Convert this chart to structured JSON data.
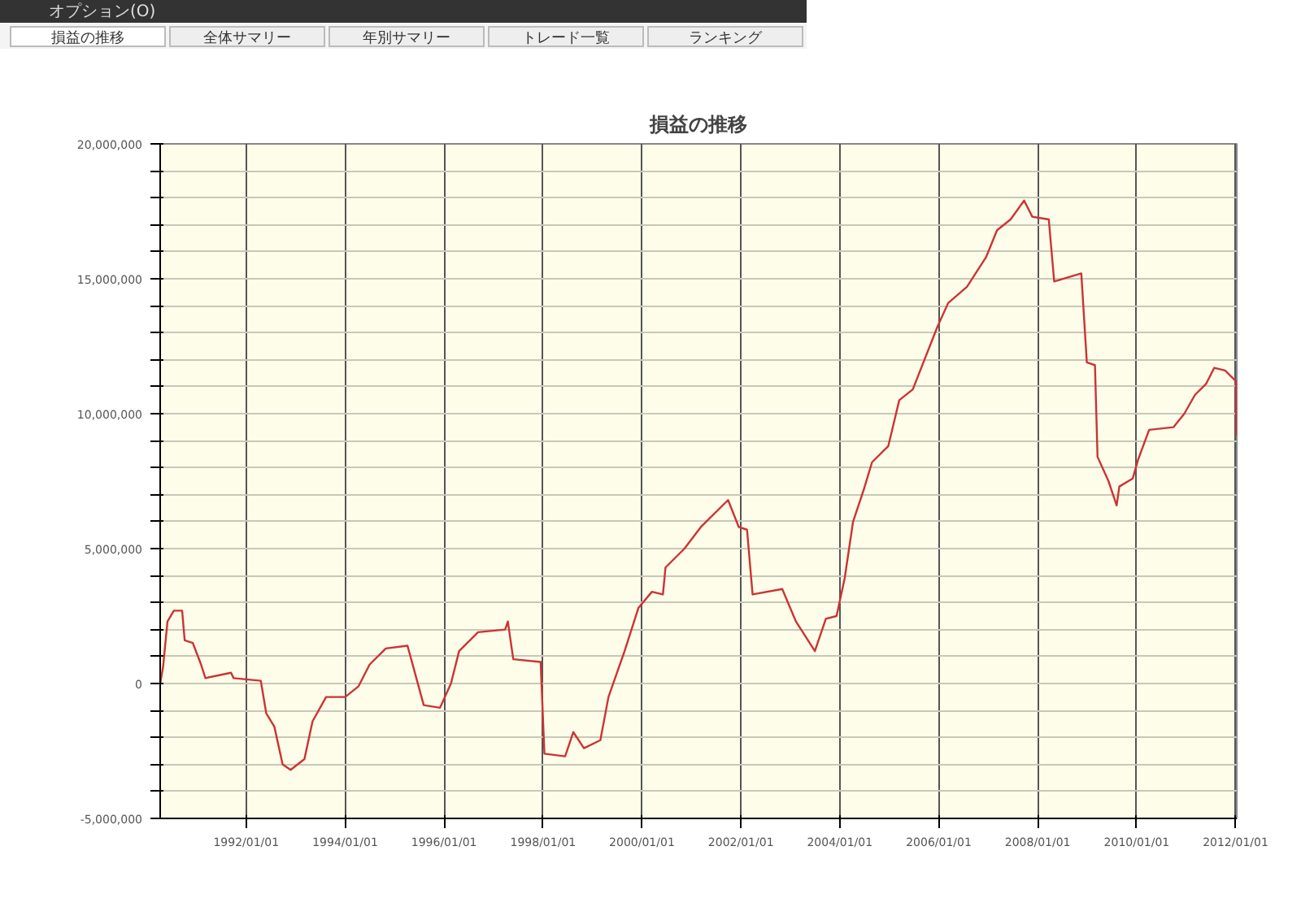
{
  "chart_data": {
    "type": "line",
    "title": "損益の推移",
    "annotations": [
      "オプション(O)",
      "損益の推移",
      "全体サマリー",
      "年別サマリー",
      "トレード一覧",
      "ランキング"
    ],
    "x": [
      "1990-04-06",
      "1990-04-27",
      "1990-05-30",
      "1990-07-16",
      "1990-09-15",
      "1990-10-04",
      "1990-12-03",
      "1991-02-02",
      "1991-03-06",
      "1991-09-11",
      "1991-09-30",
      "1992-04-18",
      "1992-05-28",
      "1992-07-27",
      "1992-09-26",
      "1992-11-24",
      "1993-03-06",
      "1993-05-05",
      "1993-08-13",
      "1994-01-01",
      "1994-04-10",
      "1994-06-30",
      "1994-10-28",
      "1995-04-06",
      "1995-08-04",
      "1995-12-02",
      "1996-02-21",
      "1996-04-21",
      "1996-09-08",
      "1997-03-27",
      "1997-04-16",
      "1997-05-26",
      "1997-12-14",
      "1998-01-11",
      "1998-06-13",
      "1998-08-12",
      "1998-10-30",
      "1999-02-28",
      "1999-04-29",
      "1999-08-26",
      "1999-12-06",
      "2000-03-15",
      "2000-06-04",
      "2000-06-23",
      "2000-11-10",
      "2001-03-11",
      "2001-09-28",
      "2001-12-16",
      "2002-02-15",
      "2002-03-28",
      "2002-11-02",
      "2003-02-11",
      "2003-07-01",
      "2003-09-20",
      "2003-12-08",
      "2004-02-06",
      "2004-04-08",
      "2004-06-27",
      "2004-08-26",
      "2004-12-24",
      "2005-03-15",
      "2005-06-23",
      "2005-12-20",
      "2006-03-11",
      "2006-07-28",
      "2006-12-16",
      "2007-03-07",
      "2007-06-15",
      "2007-09-23",
      "2007-11-22",
      "2008-03-23",
      "2008-05-02",
      "2008-11-18",
      "2008-12-29",
      "2009-02-27",
      "2009-03-18",
      "2009-06-07",
      "2009-08-06",
      "2009-08-26",
      "2009-12-03",
      "2010-01-12",
      "2010-04-03",
      "2010-09-30",
      "2010-12-19",
      "2011-03-08",
      "2011-05-28",
      "2011-07-28",
      "2011-10-16",
      "2012-01-04",
      "2012-01-06"
    ],
    "series": [
      {
        "color": "#cc3333",
        "values": [
          0,
          600000,
          2300000,
          2700000,
          2700000,
          1600000,
          1500000,
          700000,
          200000,
          400000,
          200000,
          100000,
          -1100000,
          -1600000,
          -3000000,
          -3200000,
          -2800000,
          -1400000,
          -500000,
          -500000,
          -100000,
          700000,
          1300000,
          1400000,
          -800000,
          -900000,
          0,
          1200000,
          1900000,
          2000000,
          2300000,
          900000,
          800000,
          -2600000,
          -2700000,
          -1800000,
          -2400000,
          -2100000,
          -500000,
          1200000,
          2800000,
          3400000,
          3300000,
          4300000,
          5000000,
          5800000,
          6800000,
          5800000,
          5700000,
          3300000,
          3500000,
          2300000,
          1200000,
          2400000,
          2500000,
          3900000,
          6000000,
          7200000,
          8200000,
          8800000,
          10500000,
          10900000,
          13200000,
          14100000,
          14700000,
          15800000,
          16800000,
          17200000,
          17900000,
          17300000,
          17200000,
          14900000,
          15200000,
          11900000,
          11800000,
          8400000,
          7500000,
          6600000,
          7300000,
          7600000,
          8300000,
          9400000,
          9500000,
          10000000,
          10700000,
          11100000,
          11700000,
          11600000,
          11200000,
          9200000
        ]
      }
    ],
    "xlim": [
      "1990-04-06",
      "2012-01-10"
    ],
    "xticks": [
      {
        "value": "1992-01-01",
        "label": "1992/01/01"
      },
      {
        "value": "1994-01-01",
        "label": "1994/01/01"
      },
      {
        "value": "1996-01-01",
        "label": "1996/01/01"
      },
      {
        "value": "1998-01-01",
        "label": "1998/01/01"
      },
      {
        "value": "2000-01-01",
        "label": "2000/01/01"
      },
      {
        "value": "2002-01-01",
        "label": "2002/01/01"
      },
      {
        "value": "2004-01-01",
        "label": "2004/01/01"
      },
      {
        "value": "2006-01-01",
        "label": "2006/01/01"
      },
      {
        "value": "2008-01-01",
        "label": "2008/01/01"
      },
      {
        "value": "2010-01-01",
        "label": "2010/01/01"
      },
      {
        "value": "2012-01-01",
        "label": "2012/01/01"
      }
    ],
    "ylim": [
      -5000000,
      20000000
    ],
    "yticks": [
      {
        "value": -5000000,
        "label": "-5,000,000"
      },
      {
        "value": -4000000,
        "label": null
      },
      {
        "value": -3000000,
        "label": null
      },
      {
        "value": -2000000,
        "label": null
      },
      {
        "value": -1000000,
        "label": null
      },
      0,
      {
        "value": 1000000,
        "label": null
      },
      {
        "value": 2000000,
        "label": null
      },
      {
        "value": 3000000,
        "label": null
      },
      {
        "value": 4000000,
        "label": null
      },
      {
        "value": 5000000,
        "label": "5,000,000"
      },
      {
        "value": 6000000,
        "label": null
      },
      {
        "value": 7000000,
        "label": null
      },
      {
        "value": 8000000,
        "label": null
      },
      {
        "value": 9000000,
        "label": null
      },
      {
        "value": 10000000,
        "label": "10,000,000"
      },
      {
        "value": 11000000,
        "label": null
      },
      {
        "value": 12000000,
        "label": null
      },
      {
        "value": 13000000,
        "label": null
      },
      {
        "value": 14000000,
        "label": null
      },
      {
        "value": 15000000,
        "label": "15,000,000"
      },
      {
        "value": 16000000,
        "label": null
      },
      {
        "value": 17000000,
        "label": null
      },
      {
        "value": 18000000,
        "label": null
      },
      {
        "value": 19000000,
        "label": null
      },
      {
        "value": 20000000,
        "label": "20,000,000"
      }
    ],
    "grid": true,
    "marker": "none",
    "line_style": "solid"
  }
}
